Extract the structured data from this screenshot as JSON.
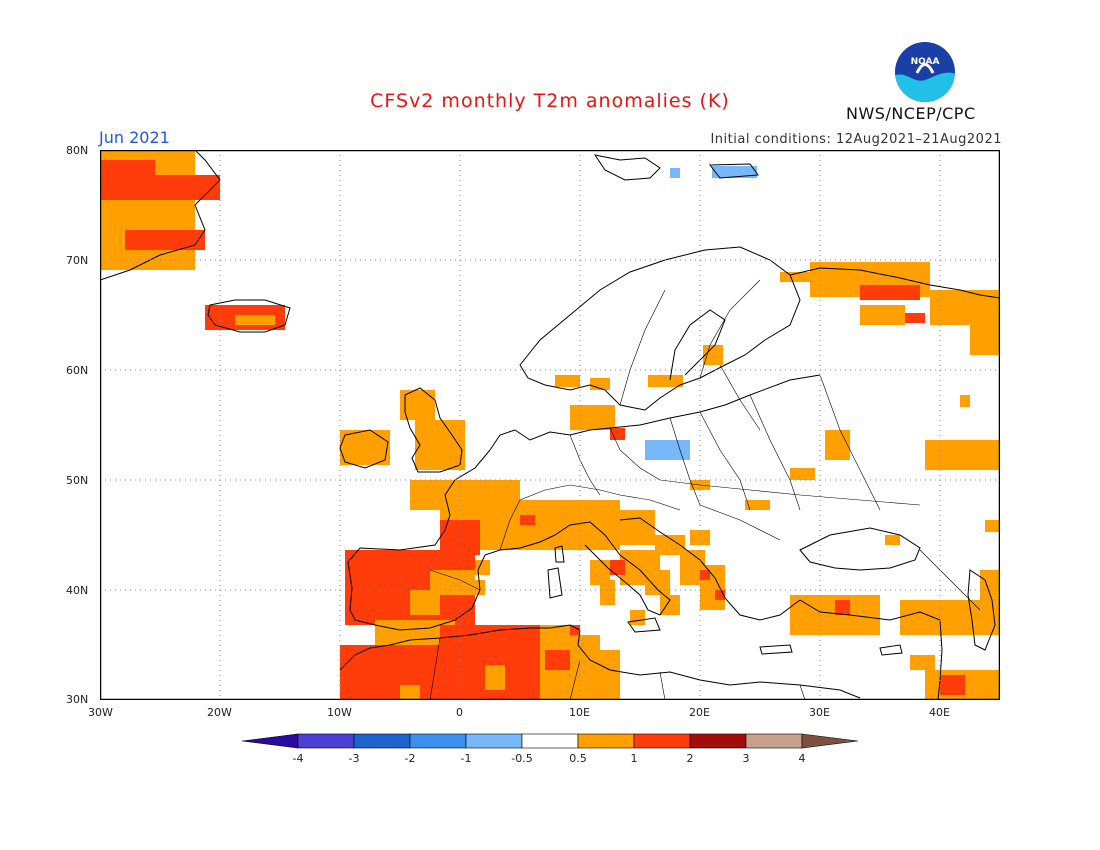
{
  "title": "CFSv2 monthly T2m anomalies (K)",
  "period": "Jun 2021",
  "initial_conditions": "Initial conditions: 12Aug2021–21Aug2021",
  "agency": "NWS/NCEP/CPC",
  "logo_text": "NOAA",
  "map": {
    "lon_range": [
      -30,
      45
    ],
    "lat_range": [
      30,
      80
    ],
    "lat_ticks": [
      "80N",
      "70N",
      "60N",
      "50N",
      "40N",
      "30N"
    ],
    "lon_ticks": [
      "30W",
      "20W",
      "10W",
      "0",
      "10E",
      "20E",
      "30E",
      "40E"
    ],
    "grid": "dotted"
  },
  "colorbar": {
    "labels": [
      "-4",
      "-3",
      "-2",
      "-1",
      "-0.5",
      "0.5",
      "1",
      "2",
      "3",
      "4"
    ],
    "colors": [
      "#2a0aa0",
      "#4b3fd4",
      "#1e64d0",
      "#3c8ef0",
      "#78b8f8",
      "#ffffff",
      "#ff9f00",
      "#ff3c0a",
      "#a40c0c",
      "#c8a090",
      "#7d5040"
    ]
  },
  "anomaly_colors": {
    "cold": "#78b8f8",
    "warm_0_5_1": "#ff9f00",
    "warm_1_2": "#ff3c0a"
  }
}
